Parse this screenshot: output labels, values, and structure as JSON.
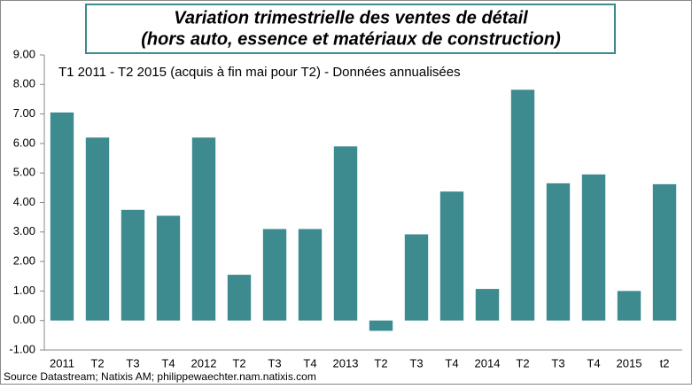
{
  "chart_data": {
    "type": "bar",
    "title": [
      "Variation trimestrielle des ventes de détail",
      "(hors auto, essence et matériaux de construction)"
    ],
    "subtitle": "T1 2011 - T2 2015 (acquis à fin  mai pour T2) - Données annualisées",
    "source": "Source Datastream; Natixis AM; philippewaechter.nam.natixis.com",
    "categories": [
      "2011",
      "T2",
      "T3",
      "T4",
      "2012",
      "T2",
      "T3",
      "T4",
      "2013",
      "T2",
      "T3",
      "T4",
      "2014",
      "T2",
      "T3",
      "T4",
      "2015",
      "t2"
    ],
    "values": [
      7.05,
      6.2,
      3.75,
      3.55,
      6.2,
      1.55,
      3.1,
      3.1,
      5.9,
      -0.35,
      2.92,
      4.37,
      1.07,
      7.82,
      4.65,
      4.95,
      1.0,
      4.62
    ],
    "color": "#3d8a8f",
    "ylim": [
      -1,
      9
    ],
    "yticks": [
      {
        "value": -1,
        "label": "-1.00"
      },
      {
        "value": 0,
        "label": "0.00"
      },
      {
        "value": 1,
        "label": "1.00"
      },
      {
        "value": 2,
        "label": "2.00"
      },
      {
        "value": 3,
        "label": "3.00"
      },
      {
        "value": 4,
        "label": "4.00"
      },
      {
        "value": 5,
        "label": "5.00"
      },
      {
        "value": 6,
        "label": "6.00"
      },
      {
        "value": 7,
        "label": "7.00"
      },
      {
        "value": 8,
        "label": "8.00"
      },
      {
        "value": 9,
        "label": "9.00"
      }
    ],
    "grid": false
  }
}
